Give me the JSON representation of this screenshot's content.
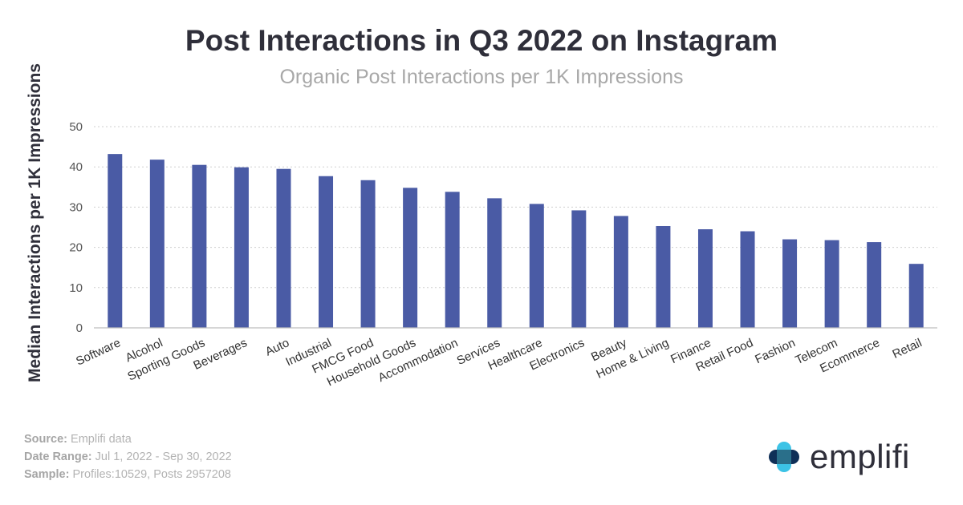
{
  "chart_data": {
    "type": "bar",
    "title": "Post Interactions in Q3 2022 on Instagram",
    "subtitle": "Organic Post Interactions per 1K Impressions",
    "xlabel": "",
    "ylabel": "Median Interactions per 1K Impressions",
    "ylim": [
      0,
      50
    ],
    "yticks": [
      0,
      10,
      20,
      30,
      40,
      50
    ],
    "grid": true,
    "bar_color": "#4a5ba5",
    "categories": [
      "Software",
      "Alcohol",
      "Sporting Goods",
      "Beverages",
      "Auto",
      "Industrial",
      "FMCG Food",
      "Household Goods",
      "Accommodation",
      "Services",
      "Healthcare",
      "Electronics",
      "Beauty",
      "Home & Living",
      "Finance",
      "Retail Food",
      "Fashion",
      "Telecom",
      "Ecommerce",
      "Retail"
    ],
    "values": [
      43.2,
      41.8,
      40.5,
      39.9,
      39.5,
      37.7,
      36.7,
      34.8,
      33.8,
      32.2,
      30.8,
      29.2,
      27.8,
      25.3,
      24.5,
      24.0,
      22.0,
      21.8,
      21.3,
      15.9
    ]
  },
  "footer": {
    "source_label": "Source:",
    "source_value": "Emplifi data",
    "date_label": "Date Range:",
    "date_value": "Jul 1, 2022 - Sep 30, 2022",
    "sample_label": "Sample:",
    "sample_value": "Profiles:10529, Posts 2957208"
  },
  "logo": {
    "text": "emplifi",
    "colors": [
      "#3cc3e6",
      "#0f2f57",
      "#2a6f8a"
    ]
  }
}
